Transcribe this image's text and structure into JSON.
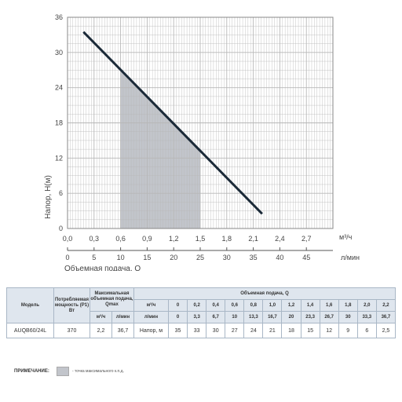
{
  "chart_data": {
    "type": "line",
    "ylabel": "Напор, Н(м)",
    "xlabel_bottom": "Объемная подача, Q",
    "x_unit_top": "м³/ч",
    "x_unit_bottom": "л/мин",
    "xlim": [
      0,
      3.0
    ],
    "ylim": [
      0,
      36
    ],
    "x_ticks_top": [
      "0,0",
      "0,3",
      "0,6",
      "0,9",
      "1,2",
      "1,5",
      "1,8",
      "2,1",
      "2,4",
      "2,7"
    ],
    "x_ticks_bottom": [
      "0",
      "5",
      "10",
      "15",
      "20",
      "25",
      "30",
      "35",
      "40",
      "45"
    ],
    "y_ticks": [
      "0",
      "6",
      "12",
      "18",
      "24",
      "30",
      "36"
    ],
    "grid": true,
    "series": [
      {
        "x": [
          0.18,
          2.2
        ],
        "y": [
          33.5,
          2.5
        ]
      }
    ],
    "shaded_region": {
      "x_from": 0.6,
      "x_to": 1.5
    }
  },
  "table": {
    "h_model": "Модель",
    "h_power": "Потребляемая мощность (P1) Вт",
    "h_qmax": "Максимальная объемная подача, Qmax",
    "h_flow": "Объемная подача, Q",
    "h_unit_m3h": "м³/ч",
    "h_unit_lmin": "л/мин",
    "flow_m3h": [
      "0",
      "0,2",
      "0,4",
      "0,6",
      "0,8",
      "1,0",
      "1,2",
      "1,4",
      "1,6",
      "1,8",
      "2,0",
      "2,2"
    ],
    "flow_lmin": [
      "0",
      "3,3",
      "6,7",
      "10",
      "13,3",
      "16,7",
      "20",
      "23,3",
      "26,7",
      "30",
      "33,3",
      "36,7"
    ],
    "row": {
      "model": "AUQB60/24L",
      "power": "370",
      "qmax_m3h": "2,2",
      "qmax_lmin": "36,7",
      "head_label": "Напор, м",
      "head": [
        "35",
        "33",
        "30",
        "27",
        "24",
        "21",
        "18",
        "15",
        "12",
        "9",
        "6",
        "2,5"
      ]
    }
  },
  "note": {
    "label": "ПРИМЕЧАНИЕ:",
    "text": "- точка максимального к.п.д."
  },
  "colors": {
    "grid": "#b7b7b7",
    "curve": "#1b2a38",
    "shade": "#c2c5cb",
    "header_bg": "#dfe6ee"
  }
}
